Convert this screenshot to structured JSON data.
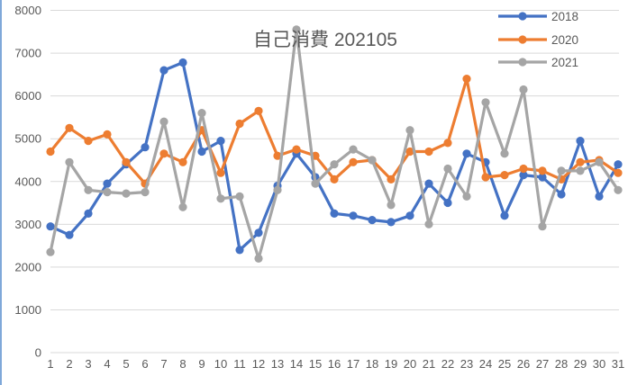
{
  "window": {
    "left_edge_color": "#7FA8D9",
    "background_color": "#FFFFFF"
  },
  "chart_data": {
    "type": "line",
    "title": "自己消費 202105",
    "title_color": "#595959",
    "axis_label_color": "#595959",
    "gridline_color": "#D9D9D9",
    "grid": "horizontal",
    "legend_position": "top-right",
    "xlabel": "",
    "ylabel": "",
    "ylim": [
      0,
      8000
    ],
    "ytick_step": 1000,
    "yticks": [
      0,
      1000,
      2000,
      3000,
      4000,
      5000,
      6000,
      7000,
      8000
    ],
    "x": [
      1,
      2,
      3,
      4,
      5,
      6,
      7,
      8,
      9,
      10,
      11,
      12,
      13,
      14,
      15,
      16,
      17,
      18,
      19,
      20,
      21,
      22,
      23,
      24,
      25,
      26,
      27,
      28,
      29,
      30,
      31
    ],
    "series": [
      {
        "name": "2018",
        "color": "#4472C4",
        "marker": "circle",
        "values": [
          2950,
          2750,
          3250,
          3950,
          4400,
          4800,
          6600,
          6780,
          4700,
          4950,
          2400,
          2800,
          3900,
          4650,
          4100,
          3250,
          3200,
          3100,
          3050,
          3200,
          3950,
          3500,
          4650,
          4450,
          3200,
          4150,
          4100,
          3700,
          4950,
          3650,
          4400
        ]
      },
      {
        "name": "2020",
        "color": "#ED7D31",
        "marker": "circle",
        "values": [
          4700,
          5250,
          4950,
          5100,
          4450,
          3950,
          4650,
          4450,
          5200,
          4200,
          5350,
          5650,
          4600,
          4750,
          4600,
          4050,
          4450,
          4500,
          4050,
          4700,
          4700,
          4900,
          6400,
          4100,
          4150,
          4300,
          4250,
          4050,
          4450,
          4500,
          4200
        ]
      },
      {
        "name": "2021",
        "color": "#A5A5A5",
        "marker": "circle",
        "values": [
          2350,
          4450,
          3800,
          3750,
          3720,
          3750,
          5400,
          3400,
          5600,
          3600,
          3650,
          2200,
          3800,
          7550,
          3950,
          4400,
          4750,
          4500,
          3450,
          5200,
          3000,
          4300,
          3650,
          5850,
          4650,
          6150,
          2950,
          4250,
          4250,
          4450,
          3800
        ]
      }
    ]
  }
}
